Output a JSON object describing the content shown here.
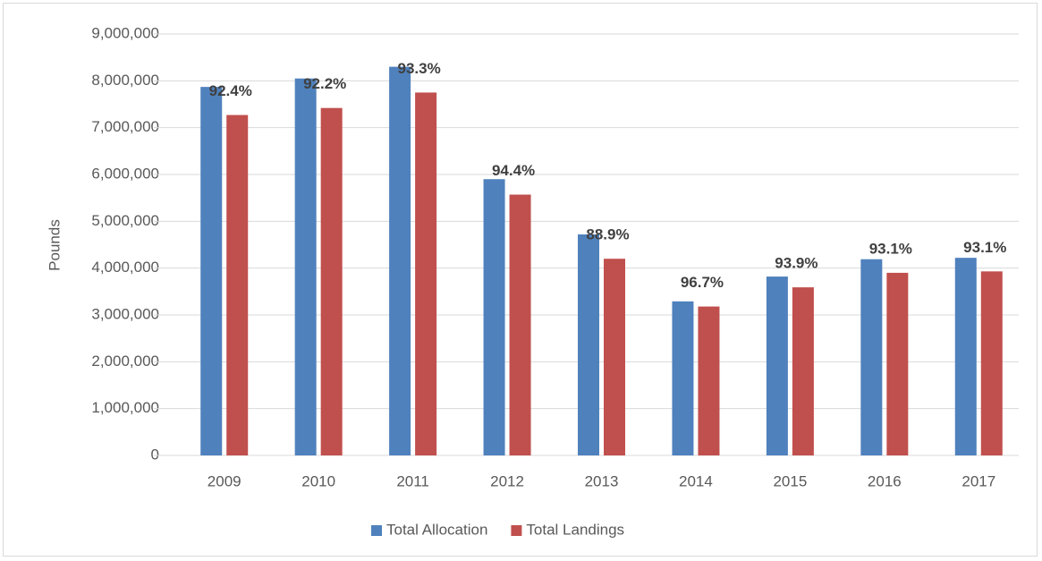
{
  "chart_data": {
    "type": "bar",
    "y_label": "Pounds",
    "categories": [
      "2009",
      "2010",
      "2011",
      "2012",
      "2013",
      "2014",
      "2015",
      "2016",
      "2017"
    ],
    "series": [
      {
        "name": "Total Allocation",
        "color": "#4f81bd",
        "values": [
          7870000,
          8050000,
          8300000,
          5900000,
          4720000,
          3290000,
          3820000,
          4190000,
          4220000
        ]
      },
      {
        "name": "Total Landings",
        "color": "#c0504d",
        "values": [
          7270000,
          7420000,
          7750000,
          5570000,
          4200000,
          3180000,
          3590000,
          3900000,
          3930000
        ]
      }
    ],
    "annotations": [
      "92.4%",
      "92.2%",
      "93.3%",
      "94.4%",
      "88.9%",
      "96.7%",
      "93.9%",
      "93.1%",
      "93.1%"
    ],
    "ylim": [
      0,
      9000000
    ],
    "yticks": [
      {
        "value": 0,
        "label": "0"
      },
      {
        "value": 1000000,
        "label": "1,000,000"
      },
      {
        "value": 2000000,
        "label": "2,000,000"
      },
      {
        "value": 3000000,
        "label": "3,000,000"
      },
      {
        "value": 4000000,
        "label": "4,000,000"
      },
      {
        "value": 5000000,
        "label": "5,000,000"
      },
      {
        "value": 6000000,
        "label": "6,000,000"
      },
      {
        "value": 7000000,
        "label": "7,000,000"
      },
      {
        "value": 8000000,
        "label": "8,000,000"
      },
      {
        "value": 9000000,
        "label": "9,000,000"
      }
    ],
    "grid": true,
    "legend": "bottom"
  }
}
